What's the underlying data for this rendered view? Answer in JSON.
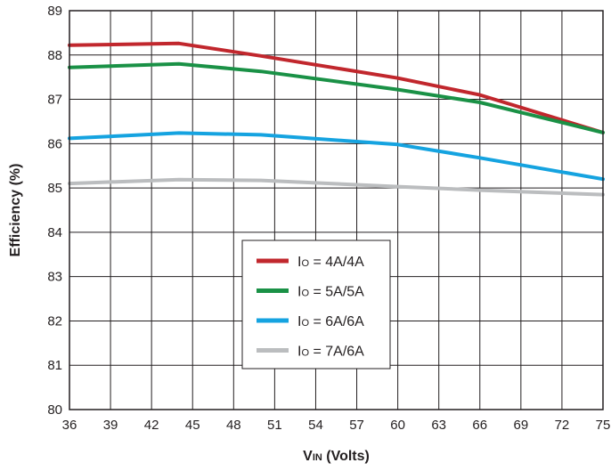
{
  "chart_data": {
    "type": "line",
    "title": "",
    "xlabel": {
      "main": "V",
      "sub": "IN",
      "rest": " (Volts)"
    },
    "ylabel": "Efficiency (%)",
    "xlim": [
      36,
      75
    ],
    "ylim": [
      80,
      89
    ],
    "xticks": [
      36,
      39,
      42,
      45,
      48,
      51,
      54,
      57,
      60,
      63,
      66,
      69,
      72,
      75
    ],
    "yticks": [
      80,
      81,
      82,
      83,
      84,
      85,
      86,
      87,
      88,
      89
    ],
    "grid": true,
    "legend_position": "center-bottom",
    "series": [
      {
        "name": {
          "main": "I",
          "sub": "O",
          "rest": " = 4A/4A"
        },
        "color": "#c1272d",
        "x": [
          36,
          44,
          50,
          60,
          66,
          75
        ],
        "y": [
          88.22,
          88.26,
          87.98,
          87.48,
          87.1,
          86.25
        ]
      },
      {
        "name": {
          "main": "I",
          "sub": "O",
          "rest": " = 5A/5A"
        },
        "color": "#1a9146",
        "x": [
          36,
          44,
          50,
          60,
          66,
          75
        ],
        "y": [
          87.72,
          87.8,
          87.63,
          87.22,
          86.93,
          86.25
        ]
      },
      {
        "name": {
          "main": "I",
          "sub": "O",
          "rest": " = 6A/6A"
        },
        "color": "#15a3e0",
        "x": [
          36,
          44,
          50,
          60,
          66,
          75
        ],
        "y": [
          86.12,
          86.24,
          86.2,
          85.98,
          85.68,
          85.2
        ]
      },
      {
        "name": {
          "main": "I",
          "sub": "O",
          "rest": " = 7A/6A"
        },
        "color": "#bbbdbf",
        "x": [
          36,
          44,
          50,
          60,
          66,
          75
        ],
        "y": [
          85.1,
          85.19,
          85.17,
          85.03,
          84.95,
          84.85
        ]
      }
    ]
  }
}
